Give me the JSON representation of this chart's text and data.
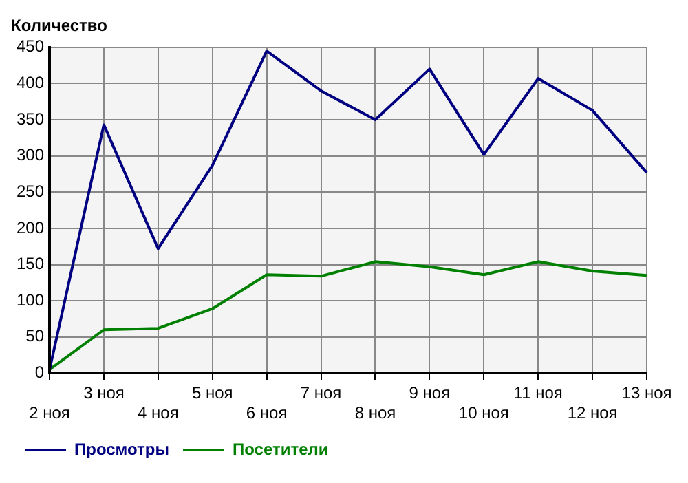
{
  "chart_data": {
    "type": "line",
    "ylabel": "Количество",
    "categories": [
      "2 ноя",
      "3 ноя",
      "4 ноя",
      "5 ноя",
      "6 ноя",
      "7 ноя",
      "8 ноя",
      "9 ноя",
      "10 ноя",
      "11 ноя",
      "12 ноя",
      "13 ноя"
    ],
    "series": [
      {
        "name": "Просмотры",
        "color": "#000080",
        "values": [
          5,
          343,
          172,
          287,
          445,
          390,
          350,
          420,
          302,
          407,
          363,
          277
        ]
      },
      {
        "name": "Посетители",
        "color": "#008000",
        "values": [
          5,
          60,
          62,
          89,
          136,
          134,
          154,
          147,
          136,
          154,
          141,
          135
        ]
      }
    ],
    "ylim": [
      0,
      450
    ],
    "yticks": [
      0,
      50,
      100,
      150,
      200,
      250,
      300,
      350,
      400,
      450
    ],
    "grid": true,
    "legend": "bottom left",
    "marker": "none",
    "line_style": "solid"
  }
}
